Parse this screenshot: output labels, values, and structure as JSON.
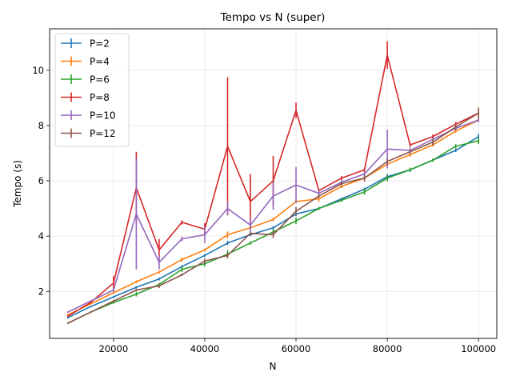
{
  "chart_data": {
    "type": "line",
    "title": "Tempo vs N (super)",
    "xlabel": "N",
    "ylabel": "Tempo (s)",
    "xlim": [
      6000,
      104000
    ],
    "ylim": [
      0.3,
      11.5
    ],
    "xticks": [
      20000,
      40000,
      60000,
      80000,
      100000
    ],
    "yticks": [
      2,
      4,
      6,
      8,
      10
    ],
    "grid": true,
    "legend_position": "top-left",
    "x": [
      10000,
      15000,
      20000,
      25000,
      30000,
      35000,
      40000,
      45000,
      50000,
      55000,
      60000,
      65000,
      70000,
      75000,
      80000,
      85000,
      90000,
      95000,
      100000
    ],
    "series": [
      {
        "name": "P=2",
        "color": "#1f77b4",
        "values": [
          1.05,
          1.45,
          1.8,
          2.15,
          2.45,
          2.9,
          3.3,
          3.75,
          4.05,
          4.3,
          4.8,
          5.0,
          5.35,
          5.7,
          6.15,
          6.4,
          6.75,
          7.1,
          7.6
        ],
        "errors": [
          0.03,
          0.03,
          0.04,
          0.04,
          0.05,
          0.05,
          0.05,
          0.08,
          0.05,
          0.06,
          0.08,
          0.05,
          0.05,
          0.05,
          0.1,
          0.06,
          0.06,
          0.06,
          0.1
        ]
      },
      {
        "name": "P=4",
        "color": "#ff7f0e",
        "values": [
          1.15,
          1.55,
          1.95,
          2.35,
          2.7,
          3.15,
          3.5,
          4.05,
          4.3,
          4.6,
          5.25,
          5.35,
          5.8,
          6.1,
          6.6,
          6.95,
          7.3,
          7.8,
          8.2
        ],
        "errors": [
          0.03,
          0.03,
          0.04,
          0.05,
          0.05,
          0.08,
          0.05,
          0.12,
          0.06,
          0.06,
          0.06,
          0.1,
          0.06,
          0.06,
          0.08,
          0.08,
          0.06,
          0.06,
          0.08
        ]
      },
      {
        "name": "P=6",
        "color": "#2ca02c",
        "values": [
          0.85,
          1.25,
          1.6,
          1.9,
          2.25,
          2.8,
          3.0,
          3.35,
          3.75,
          4.15,
          4.55,
          5.0,
          5.3,
          5.6,
          6.1,
          6.4,
          6.75,
          7.25,
          7.45
        ],
        "errors": [
          0.03,
          0.03,
          0.04,
          0.08,
          0.05,
          0.1,
          0.1,
          0.15,
          0.06,
          0.1,
          0.12,
          0.06,
          0.06,
          0.1,
          0.12,
          0.08,
          0.06,
          0.08,
          0.12
        ]
      },
      {
        "name": "P=8",
        "color": "#d62728",
        "values": [
          1.1,
          1.6,
          2.3,
          5.75,
          3.5,
          4.5,
          4.25,
          7.25,
          5.25,
          6.0,
          8.55,
          5.65,
          6.1,
          6.4,
          10.55,
          7.3,
          7.6,
          8.05,
          8.45
        ],
        "errors": [
          0.03,
          0.03,
          0.25,
          1.3,
          0.4,
          0.08,
          0.22,
          2.5,
          1.0,
          0.9,
          0.28,
          0.05,
          0.08,
          0.08,
          0.5,
          0.08,
          0.08,
          0.08,
          0.1
        ]
      },
      {
        "name": "P=10",
        "color": "#9467bd",
        "values": [
          1.25,
          1.65,
          2.05,
          4.8,
          3.05,
          3.9,
          4.05,
          5.0,
          4.4,
          5.45,
          5.85,
          5.55,
          5.95,
          6.25,
          7.15,
          7.1,
          7.5,
          7.9,
          8.2
        ],
        "errors": [
          0.03,
          0.03,
          0.08,
          2.0,
          0.25,
          0.08,
          0.3,
          0.25,
          0.25,
          0.5,
          0.65,
          0.1,
          0.08,
          0.08,
          0.7,
          0.1,
          0.08,
          0.08,
          0.08
        ]
      },
      {
        "name": "P=12",
        "color": "#8c564b",
        "values": [
          0.85,
          1.25,
          1.65,
          2.05,
          2.2,
          2.6,
          3.1,
          3.3,
          4.1,
          4.05,
          4.9,
          5.45,
          5.9,
          6.1,
          6.7,
          7.05,
          7.4,
          7.95,
          8.45
        ],
        "errors": [
          0.03,
          0.03,
          0.04,
          0.05,
          0.08,
          0.05,
          0.1,
          0.1,
          0.06,
          0.12,
          0.15,
          0.06,
          0.08,
          0.12,
          0.1,
          0.08,
          0.12,
          0.1,
          0.2
        ]
      }
    ]
  }
}
